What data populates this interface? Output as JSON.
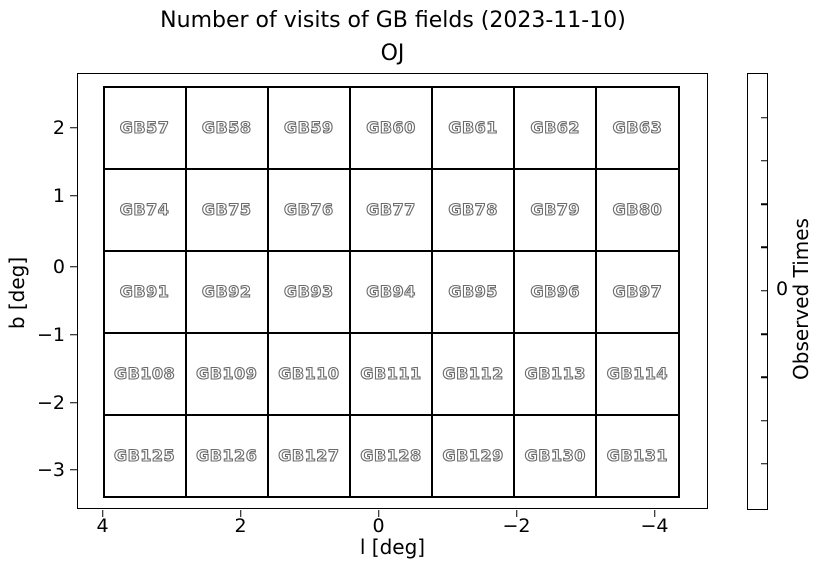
{
  "title": {
    "line1": "Number of visits of GB fields (2023-11-10)",
    "line2": "OJ"
  },
  "axes": {
    "xlabel": "l [deg]",
    "ylabel": "b [deg]",
    "x_tick_labels": [
      "4",
      "2",
      "0",
      "−2",
      "−4"
    ],
    "y_tick_labels": [
      "2",
      "1",
      "0",
      "−1",
      "−2",
      "−3"
    ]
  },
  "fields": {
    "rows": [
      [
        "GB57",
        "GB58",
        "GB59",
        "GB60",
        "GB61",
        "GB62",
        "GB63"
      ],
      [
        "GB74",
        "GB75",
        "GB76",
        "GB77",
        "GB78",
        "GB79",
        "GB80"
      ],
      [
        "GB91",
        "GB92",
        "GB93",
        "GB94",
        "GB95",
        "GB96",
        "GB97"
      ],
      [
        "GB108",
        "GB109",
        "GB110",
        "GB111",
        "GB112",
        "GB113",
        "GB114"
      ],
      [
        "GB125",
        "GB126",
        "GB127",
        "GB128",
        "GB129",
        "GB130",
        "GB131"
      ]
    ]
  },
  "colorbar": {
    "label": "Observed Times",
    "tick_label": "0",
    "num_ticks": 9
  },
  "colors": {
    "cell_fill": "#ffffff",
    "cell_border": "#000000",
    "field_label_fill": "#ffffff",
    "field_label_outline": "#6b6b6b"
  },
  "chart_data": {
    "type": "heatmap",
    "title": "Number of visits of GB fields (2023-11-10)",
    "subtitle": "OJ",
    "xlabel": "l [deg]",
    "ylabel": "b [deg]",
    "x_ticks": [
      4,
      2,
      0,
      -2,
      -4
    ],
    "y_ticks": [
      2,
      1,
      0,
      -1,
      -2,
      -3
    ],
    "x_axis_inverted": true,
    "grid_shape": {
      "rows": 5,
      "cols": 7
    },
    "cell_labels": [
      [
        "GB57",
        "GB58",
        "GB59",
        "GB60",
        "GB61",
        "GB62",
        "GB63"
      ],
      [
        "GB74",
        "GB75",
        "GB76",
        "GB77",
        "GB78",
        "GB79",
        "GB80"
      ],
      [
        "GB91",
        "GB92",
        "GB93",
        "GB94",
        "GB95",
        "GB96",
        "GB97"
      ],
      [
        "GB108",
        "GB109",
        "GB110",
        "GB111",
        "GB112",
        "GB113",
        "GB114"
      ],
      [
        "GB125",
        "GB126",
        "GB127",
        "GB128",
        "GB129",
        "GB130",
        "GB131"
      ]
    ],
    "values": [
      [
        0,
        0,
        0,
        0,
        0,
        0,
        0
      ],
      [
        0,
        0,
        0,
        0,
        0,
        0,
        0
      ],
      [
        0,
        0,
        0,
        0,
        0,
        0,
        0
      ],
      [
        0,
        0,
        0,
        0,
        0,
        0,
        0
      ],
      [
        0,
        0,
        0,
        0,
        0,
        0,
        0
      ]
    ],
    "colorbar": {
      "label": "Observed Times",
      "labeled_ticks": [
        0
      ],
      "num_ticks": 9
    },
    "grid_on": true,
    "legend": null
  }
}
